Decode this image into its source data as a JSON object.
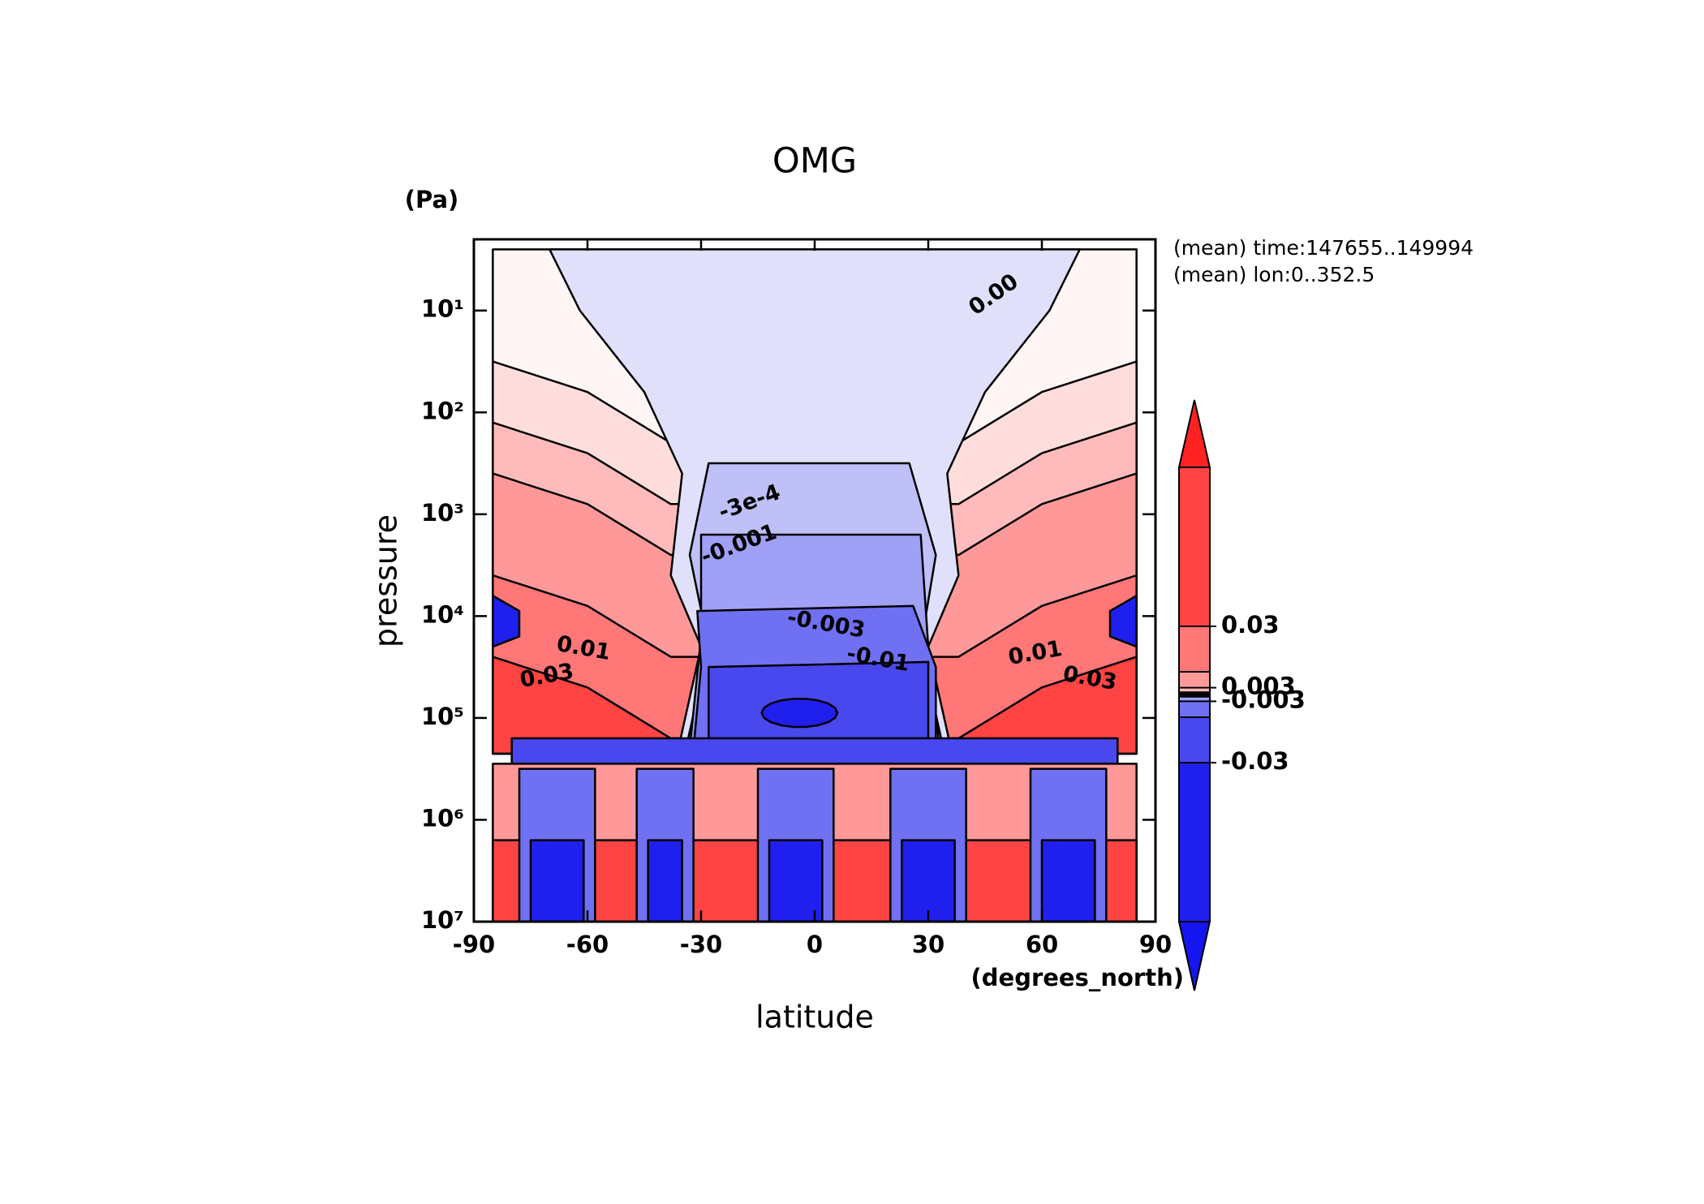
{
  "chart_data": {
    "type": "contour",
    "title": "OMG",
    "x_label": "latitude",
    "x_units": "(degrees_north)",
    "y_label": "pressure",
    "y_units": "(Pa)",
    "notes": [
      "(mean) time:147655..149994",
      "(mean) lon:0..352.5"
    ],
    "xlim": [
      -90,
      90
    ],
    "xticks": [
      -90,
      -60,
      -30,
      0,
      30,
      60,
      90
    ],
    "ylim": [
      10000000,
      2
    ],
    "log_y": true,
    "yticks": [
      {
        "value": 10,
        "label": "10¹"
      },
      {
        "value": 100,
        "label": "10²"
      },
      {
        "value": 1000,
        "label": "10³"
      },
      {
        "value": 10000,
        "label": "10⁴"
      },
      {
        "value": 100000,
        "label": "10⁵"
      },
      {
        "value": 1000000,
        "label": "10⁶"
      },
      {
        "value": 10000000,
        "label": "10⁷"
      }
    ],
    "levels": [
      -0.1,
      -0.03,
      -0.01,
      -0.003,
      -0.001,
      -0.0003,
      0,
      0.0003,
      0.001,
      0.003,
      0.01,
      0.03,
      0.1
    ],
    "colors": [
      "#1515f0",
      "#2020ee",
      "#4848ee",
      "#7070f2",
      "#a0a0f6",
      "#c0c0f8",
      "#e0e0fa",
      "#fff5f5",
      "#fdd",
      "#fbb",
      "#f99",
      "#f77",
      "#f44",
      "#f22"
    ],
    "colorbar_ticks": [
      0.03,
      0.003,
      -0.003,
      -0.03
    ],
    "contour_labels": [
      "0.00",
      "-3e-4",
      "-0.001",
      "-0.003",
      "-0.01",
      "0.01",
      "0.03",
      "0.01",
      "0.03"
    ]
  }
}
